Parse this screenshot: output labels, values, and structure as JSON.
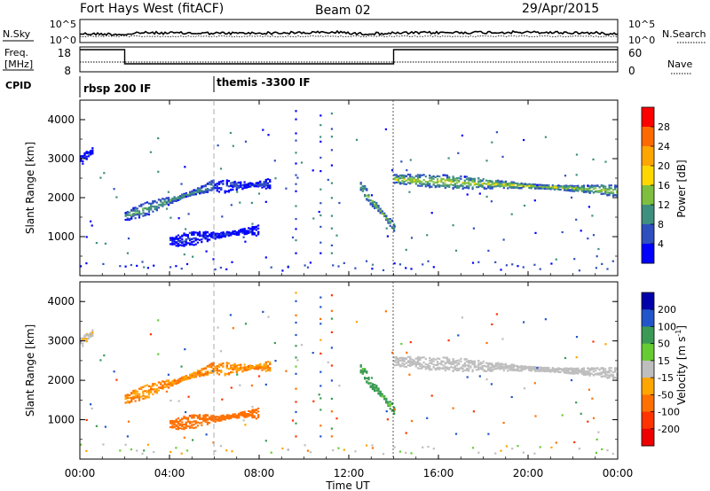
{
  "header": {
    "station": "Fort Hays West (fitACF)",
    "beam": "Beam 02",
    "date": "29/Apr/2015"
  },
  "panels": {
    "noise": {
      "left_label": "N.Sky",
      "right_label": "N.Search",
      "left_ticks": [
        "10^5",
        "10^0"
      ],
      "right_ticks": [
        "10^5",
        "10^0"
      ]
    },
    "freq": {
      "left_label_1": "Freq.",
      "left_label_2": "[MHz]",
      "right_label": "Nave",
      "left_ticks": [
        "18",
        "8"
      ],
      "right_ticks": [
        "60",
        "0"
      ]
    },
    "cpid": {
      "label": "CPID",
      "modes": [
        "rbsp 200 IF",
        "themis -3300 IF"
      ]
    }
  },
  "colorbars": {
    "power": {
      "label": "Power [dB]",
      "ticks": [
        "28",
        "24",
        "20",
        "16",
        "12",
        "8",
        "4"
      ],
      "colors": [
        "#ff0000",
        "#ff6a00",
        "#ffa500",
        "#ffd700",
        "#7fbf3f",
        "#3f8f7f",
        "#2f4fbf",
        "#0000ff"
      ]
    },
    "velocity": {
      "label_prefix": "Velocity [m s",
      "label_sup": "-1",
      "label_suffix": "]",
      "ticks": [
        "200",
        "100",
        "50",
        "15",
        "-15",
        "-50",
        "-100",
        "-200"
      ],
      "colors": [
        "#0000aa",
        "#2255cc",
        "#3a9a55",
        "#66cc33",
        "#bebebe",
        "#ffa500",
        "#ff7000",
        "#ff3300",
        "#ee0000"
      ]
    }
  },
  "chart_data": {
    "type": "heatmap",
    "xlabel": "Time UT",
    "ylabel": "Slant Range [km]",
    "x_ticks": [
      "00:00",
      "04:00",
      "08:00",
      "12:00",
      "16:00",
      "20:00",
      "00:00"
    ],
    "y_ticks": [
      "1000",
      "2000",
      "3000",
      "4000"
    ],
    "xlim_hours": [
      0,
      24
    ],
    "ylim_km": [
      0,
      4500
    ],
    "frequency_schedule": [
      {
        "start_hour": 0,
        "end_hour": 2,
        "level": "high"
      },
      {
        "start_hour": 2,
        "end_hour": 14,
        "level": "low"
      },
      {
        "start_hour": 14,
        "end_hour": 24,
        "level": "high"
      }
    ],
    "cpid_changes_hours": [
      0,
      6
    ],
    "echo_regions": [
      {
        "start_hour": 0.0,
        "end_hour": 0.6,
        "range_start_km": 3000,
        "range_end_km": 3250,
        "power_db": 5,
        "velocity": -10
      },
      {
        "start_hour": 2.0,
        "end_hour": 6.0,
        "range_start_km": 1550,
        "range_end_km": 2350,
        "power_db": 14,
        "velocity": -30
      },
      {
        "start_hour": 6.0,
        "end_hour": 8.5,
        "range_start_km": 2300,
        "range_end_km": 2380,
        "power_db": 7,
        "velocity": -30
      },
      {
        "start_hour": 4.0,
        "end_hour": 8.0,
        "range_start_km": 900,
        "range_end_km": 1200,
        "power_db": 6,
        "velocity": -60
      },
      {
        "start_hour": 12.5,
        "end_hour": 14.0,
        "range_start_km": 2300,
        "range_end_km": 1250,
        "power_db": 16,
        "velocity": 40
      },
      {
        "start_hour": 14.0,
        "end_hour": 24.0,
        "range_start_km": 2500,
        "range_end_km": 2200,
        "power_db": 18,
        "velocity": 0
      }
    ]
  }
}
